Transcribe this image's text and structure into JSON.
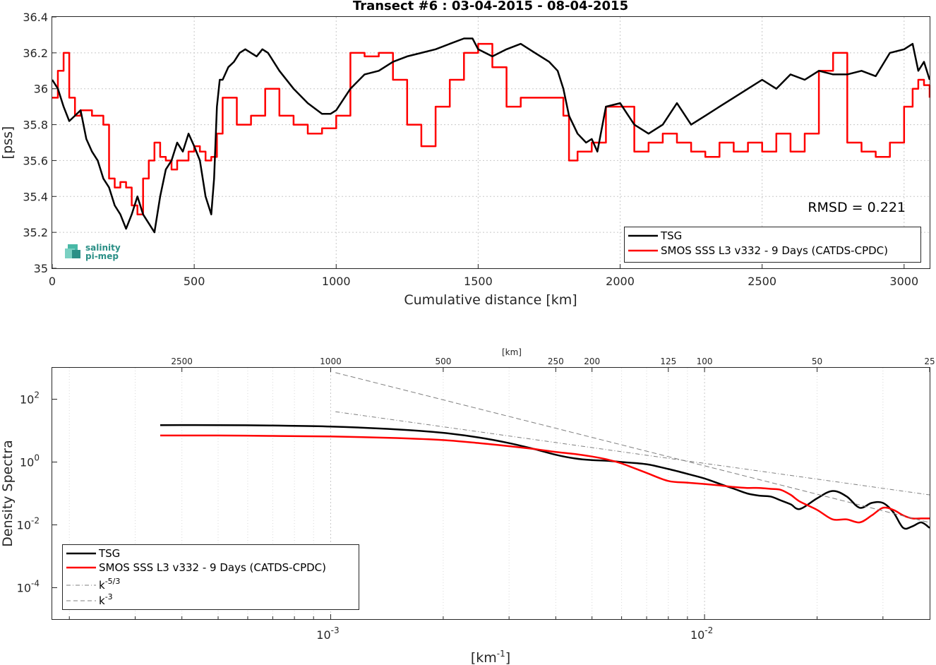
{
  "chart_data": [
    {
      "type": "line",
      "title": "Transect #6 : 03-04-2015 - 08-04-2015",
      "xlabel": "Cumulative distance [km]",
      "ylabel": "[pss]",
      "xlim": [
        0,
        3090
      ],
      "ylim": [
        35,
        36.4
      ],
      "xticks": [
        0,
        500,
        1000,
        1500,
        2000,
        2500,
        3000
      ],
      "yticks": [
        35,
        35.2,
        35.4,
        35.6,
        35.8,
        36,
        36.2,
        36.4
      ],
      "xtick_labels": [
        "0",
        "500",
        "1000",
        "1500",
        "2000",
        "2500",
        "3000"
      ],
      "ytick_labels": [
        "35",
        "35.2",
        "35.4",
        "35.6",
        "35.8",
        "36",
        "36.2",
        "36.4"
      ],
      "annotation": "RMSD = 0.221",
      "legend_position": "bottom-right",
      "grid": true,
      "series": [
        {
          "name": "TSG",
          "color": "#000000",
          "x": [
            0,
            20,
            40,
            60,
            80,
            100,
            120,
            140,
            160,
            180,
            200,
            220,
            240,
            260,
            280,
            300,
            320,
            340,
            360,
            380,
            400,
            420,
            440,
            460,
            480,
            500,
            520,
            540,
            560,
            570,
            580,
            590,
            600,
            620,
            640,
            660,
            680,
            700,
            720,
            740,
            760,
            800,
            850,
            900,
            950,
            980,
            1000,
            1050,
            1100,
            1150,
            1200,
            1250,
            1300,
            1350,
            1400,
            1450,
            1480,
            1500,
            1550,
            1600,
            1650,
            1700,
            1750,
            1780,
            1800,
            1820,
            1850,
            1880,
            1900,
            1920,
            1950,
            2000,
            2050,
            2100,
            2150,
            2200,
            2250,
            2300,
            2350,
            2400,
            2450,
            2500,
            2550,
            2600,
            2650,
            2700,
            2750,
            2800,
            2850,
            2900,
            2950,
            3000,
            3030,
            3050,
            3070,
            3090
          ],
          "y": [
            36.05,
            36.0,
            35.9,
            35.82,
            35.85,
            35.88,
            35.72,
            35.65,
            35.6,
            35.5,
            35.45,
            35.35,
            35.3,
            35.22,
            35.3,
            35.4,
            35.3,
            35.25,
            35.2,
            35.4,
            35.55,
            35.6,
            35.7,
            35.65,
            35.75,
            35.68,
            35.6,
            35.4,
            35.3,
            35.5,
            35.9,
            36.05,
            36.05,
            36.12,
            36.15,
            36.2,
            36.22,
            36.2,
            36.18,
            36.22,
            36.2,
            36.1,
            36.0,
            35.92,
            35.86,
            35.86,
            35.88,
            36.0,
            36.08,
            36.1,
            36.15,
            36.18,
            36.2,
            36.22,
            36.25,
            36.28,
            36.28,
            36.22,
            36.18,
            36.22,
            36.25,
            36.2,
            36.15,
            36.1,
            36.0,
            35.85,
            35.75,
            35.7,
            35.72,
            35.65,
            35.9,
            35.92,
            35.8,
            35.75,
            35.8,
            35.92,
            35.8,
            35.85,
            35.9,
            35.95,
            36.0,
            36.05,
            36.0,
            36.08,
            36.05,
            36.1,
            36.08,
            36.08,
            36.1,
            36.07,
            36.2,
            36.22,
            36.25,
            36.1,
            36.15,
            36.05
          ]
        },
        {
          "name": "SMOS SSS L3 v332 - 9 Days (CATDS-CPDC)",
          "color": "#ff0000",
          "x": [
            0,
            20,
            40,
            60,
            80,
            100,
            120,
            140,
            160,
            180,
            200,
            220,
            240,
            260,
            280,
            300,
            320,
            340,
            360,
            380,
            400,
            420,
            440,
            460,
            480,
            500,
            520,
            540,
            560,
            580,
            600,
            650,
            700,
            750,
            800,
            850,
            900,
            950,
            1000,
            1050,
            1100,
            1150,
            1200,
            1250,
            1300,
            1350,
            1400,
            1450,
            1500,
            1550,
            1600,
            1650,
            1700,
            1750,
            1800,
            1820,
            1850,
            1880,
            1900,
            1920,
            1950,
            2000,
            2050,
            2100,
            2150,
            2200,
            2250,
            2300,
            2350,
            2400,
            2450,
            2500,
            2550,
            2600,
            2650,
            2700,
            2750,
            2800,
            2850,
            2900,
            2950,
            3000,
            3030,
            3050,
            3070,
            3090
          ],
          "y": [
            35.95,
            36.1,
            36.2,
            35.95,
            35.85,
            35.88,
            35.88,
            35.85,
            35.85,
            35.8,
            35.5,
            35.45,
            35.48,
            35.45,
            35.35,
            35.3,
            35.5,
            35.6,
            35.7,
            35.62,
            35.6,
            35.55,
            35.6,
            35.6,
            35.65,
            35.68,
            35.65,
            35.6,
            35.62,
            35.75,
            35.95,
            35.8,
            35.85,
            36.0,
            35.85,
            35.8,
            35.75,
            35.78,
            35.85,
            36.2,
            36.18,
            36.2,
            36.05,
            35.8,
            35.68,
            35.9,
            36.05,
            36.2,
            36.25,
            36.12,
            35.9,
            35.95,
            35.95,
            35.95,
            35.85,
            35.6,
            35.65,
            35.65,
            35.7,
            35.7,
            35.9,
            35.9,
            35.65,
            35.7,
            35.75,
            35.7,
            35.65,
            35.62,
            35.7,
            35.65,
            35.7,
            35.65,
            35.75,
            35.65,
            35.75,
            36.1,
            36.2,
            35.7,
            35.65,
            35.62,
            35.7,
            35.9,
            36.0,
            36.05,
            36.02,
            35.95
          ]
        }
      ]
    },
    {
      "type": "line",
      "title": "",
      "xlabel": "[km",
      "xlabel_sup": "-1",
      "xlabel_tail": "]",
      "ylabel": "Density Spectra",
      "top_axis_label": "[km]",
      "xscale": "log",
      "yscale": "log",
      "xlim": [
        0.00018,
        0.04
      ],
      "ylim": [
        1e-05,
        1000
      ],
      "xticks": [
        0.001,
        0.01
      ],
      "xtick_labels": [
        {
          "base": "10",
          "exp": "-3"
        },
        {
          "base": "10",
          "exp": "-2"
        }
      ],
      "yticks": [
        0.0001,
        0.01,
        1,
        100
      ],
      "ytick_labels": [
        {
          "base": "10",
          "exp": "-4"
        },
        {
          "base": "10",
          "exp": "-2"
        },
        {
          "base": "10",
          "exp": "0"
        },
        {
          "base": "10",
          "exp": "2"
        }
      ],
      "top_ticks": [
        2500,
        1000,
        500,
        250,
        200,
        125,
        100,
        50,
        25
      ],
      "top_tick_labels": [
        "2500",
        "1000",
        "500",
        "250",
        "200",
        "125",
        "100",
        "50",
        "25"
      ],
      "legend_position": "bottom-left",
      "grid": true,
      "series": [
        {
          "name": "TSG",
          "color": "#000000",
          "x": [
            0.00035,
            0.0005,
            0.0007,
            0.001,
            0.0015,
            0.002,
            0.0025,
            0.003,
            0.0035,
            0.004,
            0.0045,
            0.005,
            0.0055,
            0.006,
            0.007,
            0.008,
            0.009,
            0.01,
            0.011,
            0.012,
            0.013,
            0.014,
            0.015,
            0.016,
            0.017,
            0.018,
            0.02,
            0.022,
            0.024,
            0.026,
            0.028,
            0.03,
            0.032,
            0.034,
            0.036,
            0.038,
            0.04
          ],
          "y": [
            15,
            15,
            14.5,
            13.5,
            11,
            8.5,
            6,
            4,
            2.6,
            1.7,
            1.3,
            1.15,
            1.1,
            1.0,
            0.85,
            0.6,
            0.42,
            0.3,
            0.2,
            0.14,
            0.1,
            0.085,
            0.08,
            0.06,
            0.045,
            0.032,
            0.07,
            0.12,
            0.08,
            0.035,
            0.05,
            0.05,
            0.025,
            0.008,
            0.009,
            0.012,
            0.008
          ]
        },
        {
          "name": "SMOS SSS L3 v332 - 9 Days (CATDS-CPDC)",
          "color": "#ff0000",
          "x": [
            0.00035,
            0.0005,
            0.0007,
            0.001,
            0.0015,
            0.002,
            0.0025,
            0.003,
            0.0035,
            0.004,
            0.0045,
            0.005,
            0.0055,
            0.006,
            0.007,
            0.008,
            0.009,
            0.01,
            0.011,
            0.012,
            0.013,
            0.014,
            0.015,
            0.016,
            0.017,
            0.018,
            0.02,
            0.022,
            0.024,
            0.026,
            0.028,
            0.03,
            0.032,
            0.034,
            0.036,
            0.038,
            0.04
          ],
          "y": [
            7,
            7,
            6.8,
            6.5,
            5.8,
            5,
            4,
            3.2,
            2.6,
            2.1,
            1.8,
            1.5,
            1.2,
            0.9,
            0.45,
            0.25,
            0.22,
            0.2,
            0.18,
            0.16,
            0.15,
            0.15,
            0.14,
            0.13,
            0.09,
            0.055,
            0.03,
            0.015,
            0.015,
            0.012,
            0.02,
            0.035,
            0.03,
            0.02,
            0.016,
            0.016,
            0.016
          ]
        },
        {
          "name": "k^-5/3",
          "label_base": "k",
          "label_sup": "-5/3",
          "color": "#7f7f7f",
          "dash": "dashdot",
          "x": [
            0.00103,
            0.04
          ],
          "y": [
            40,
            0.09
          ]
        },
        {
          "name": "k^-3",
          "label_base": "k",
          "label_sup": "-3",
          "color": "#7f7f7f",
          "dash": "dashed",
          "x": [
            0.00103,
            0.04
          ],
          "y": [
            700,
            0.0118
          ]
        }
      ]
    }
  ],
  "logo": {
    "line1": "salinity",
    "line2": "pi-mep"
  }
}
